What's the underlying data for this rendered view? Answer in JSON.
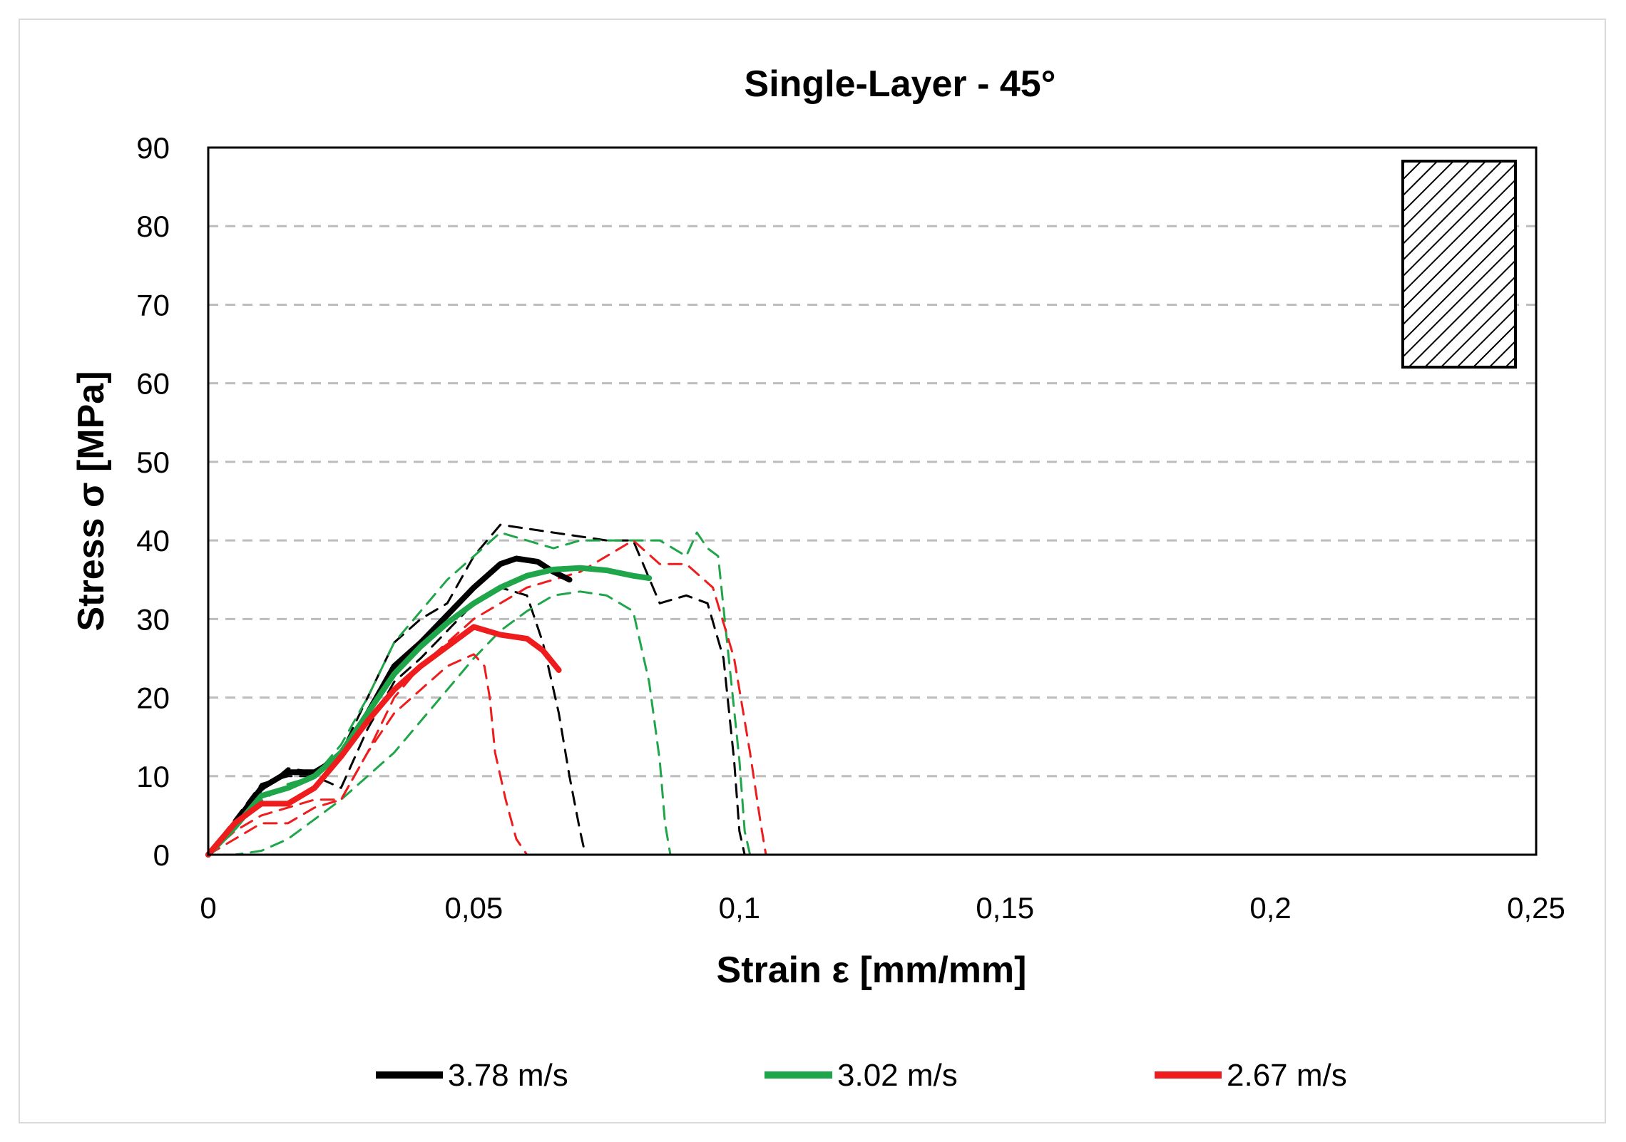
{
  "chart_data": {
    "type": "line",
    "title": "Single-Layer - 45°",
    "xlabel": "Strain ε [mm/mm]",
    "ylabel": "Stress σ [MPa]",
    "xlim": [
      0,
      0.25
    ],
    "ylim": [
      0,
      90
    ],
    "x_ticks": [
      0,
      0.05,
      0.1,
      0.15,
      0.2,
      0.25
    ],
    "x_tick_labels": [
      "0",
      "0,05",
      "0,1",
      "0,15",
      "0,2",
      "0,25"
    ],
    "y_ticks": [
      0,
      10,
      20,
      30,
      40,
      50,
      60,
      70,
      80,
      90
    ],
    "y_tick_labels": [
      "0",
      "10",
      "20",
      "30",
      "40",
      "50",
      "60",
      "70",
      "80",
      "90"
    ],
    "grid": "horizontal dashed",
    "legend": "bottom",
    "inset": "hatched rectangle (specimen orientation 45°)",
    "series": [
      {
        "name": "3.78 m/s",
        "color": "#000000",
        "style": "solid-thick",
        "x": [
          0,
          0.005,
          0.01,
          0.015,
          0.02,
          0.025,
          0.03,
          0.035,
          0.04,
          0.045,
          0.05,
          0.055,
          0.058,
          0.062,
          0.065,
          0.068
        ],
        "y": [
          0,
          4,
          8.5,
          10.5,
          10.5,
          12.5,
          18,
          24,
          27,
          30.5,
          34,
          37,
          37.7,
          37.3,
          36,
          35
        ]
      },
      {
        "name": "3.78 m/s",
        "color": "#000000",
        "style": "dashed",
        "x": [
          0,
          0.008,
          0.015,
          0.02,
          0.025,
          0.03,
          0.035,
          0.04,
          0.045,
          0.05,
          0.055,
          0.06,
          0.065,
          0.07,
          0.075,
          0.08,
          0.085,
          0.09,
          0.094,
          0.097,
          0.099,
          0.1,
          0.101
        ],
        "y": [
          0,
          7,
          11,
          10.5,
          13,
          20,
          27,
          30,
          32,
          38,
          42,
          41.5,
          41,
          40.5,
          40,
          40,
          32,
          33,
          32,
          25,
          12,
          3,
          0
        ]
      },
      {
        "name": "3.78 m/s",
        "color": "#000000",
        "style": "dashed",
        "x": [
          0,
          0.01,
          0.015,
          0.02,
          0.025,
          0.03,
          0.035,
          0.04,
          0.045,
          0.05,
          0.055,
          0.06,
          0.063,
          0.066,
          0.068,
          0.07,
          0.071
        ],
        "y": [
          0,
          9,
          10,
          10,
          8.5,
          16,
          22,
          25,
          28.5,
          32,
          34,
          33,
          27,
          18,
          10,
          3,
          0
        ]
      },
      {
        "name": "3.02 m/s",
        "color": "#1fa64a",
        "style": "solid-thick",
        "x": [
          0,
          0.005,
          0.01,
          0.015,
          0.02,
          0.025,
          0.03,
          0.035,
          0.04,
          0.045,
          0.05,
          0.055,
          0.06,
          0.065,
          0.07,
          0.075,
          0.08,
          0.083
        ],
        "y": [
          0,
          3.5,
          7.5,
          8.5,
          10,
          13,
          18,
          23,
          26.5,
          29.5,
          32,
          34,
          35.5,
          36.3,
          36.5,
          36.2,
          35.5,
          35.2
        ]
      },
      {
        "name": "3.02 m/s",
        "color": "#1fa64a",
        "style": "dashed",
        "x": [
          0,
          0.008,
          0.015,
          0.02,
          0.025,
          0.03,
          0.035,
          0.04,
          0.045,
          0.05,
          0.055,
          0.06,
          0.065,
          0.07,
          0.075,
          0.08,
          0.085,
          0.09,
          0.092,
          0.094,
          0.096,
          0.098,
          0.1,
          0.101,
          0.102
        ],
        "y": [
          0,
          6,
          9,
          10,
          14,
          20,
          27,
          31,
          35,
          38,
          41,
          40,
          39,
          40,
          40,
          40,
          40,
          38,
          41,
          39,
          38,
          25,
          12,
          3,
          0
        ]
      },
      {
        "name": "3.02 m/s",
        "color": "#1fa64a",
        "style": "dashed",
        "x": [
          0,
          0.005,
          0.01,
          0.015,
          0.02,
          0.025,
          0.03,
          0.035,
          0.04,
          0.045,
          0.05,
          0.055,
          0.06,
          0.065,
          0.07,
          0.075,
          0.08,
          0.083,
          0.085,
          0.086,
          0.087
        ],
        "y": [
          0,
          0,
          0.5,
          2,
          4.5,
          7,
          10,
          13,
          17,
          21,
          25,
          28.5,
          31,
          33,
          33.5,
          33,
          31,
          22,
          12,
          4,
          0
        ]
      },
      {
        "name": "2.67 m/s",
        "color": "#ee1c1c",
        "style": "solid-thick",
        "x": [
          0,
          0.005,
          0.01,
          0.015,
          0.02,
          0.025,
          0.03,
          0.035,
          0.04,
          0.045,
          0.05,
          0.055,
          0.06,
          0.063,
          0.066
        ],
        "y": [
          0,
          4,
          6.5,
          6.5,
          8.5,
          12.5,
          17,
          21,
          24,
          26.5,
          29,
          28,
          27.5,
          26,
          23.5
        ]
      },
      {
        "name": "2.67 m/s",
        "color": "#ee1c1c",
        "style": "dashed",
        "x": [
          0,
          0.005,
          0.01,
          0.015,
          0.02,
          0.025,
          0.03,
          0.035,
          0.04,
          0.045,
          0.05,
          0.055,
          0.06,
          0.065,
          0.07,
          0.075,
          0.08,
          0.085,
          0.09,
          0.095,
          0.099,
          0.102,
          0.104,
          0.105
        ],
        "y": [
          0,
          3,
          5,
          6,
          7,
          7,
          13,
          20,
          24,
          27,
          30,
          32,
          34,
          35,
          36,
          38,
          40,
          37,
          37,
          34,
          25,
          13,
          4,
          0
        ]
      },
      {
        "name": "2.67 m/s",
        "color": "#ee1c1c",
        "style": "dashed",
        "x": [
          0,
          0.005,
          0.01,
          0.015,
          0.02,
          0.025,
          0.03,
          0.035,
          0.04,
          0.045,
          0.05,
          0.052,
          0.053,
          0.054,
          0.056,
          0.058,
          0.06
        ],
        "y": [
          0,
          2,
          4,
          4,
          6,
          7,
          13,
          18,
          21,
          24,
          25.5,
          24,
          20,
          13,
          7,
          2,
          0
        ]
      }
    ],
    "legend_entries": [
      {
        "label": "3.78 m/s",
        "color": "#000000"
      },
      {
        "label": "3.02 m/s",
        "color": "#1fa64a"
      },
      {
        "label": "2.67 m/s",
        "color": "#ee1c1c"
      }
    ]
  }
}
